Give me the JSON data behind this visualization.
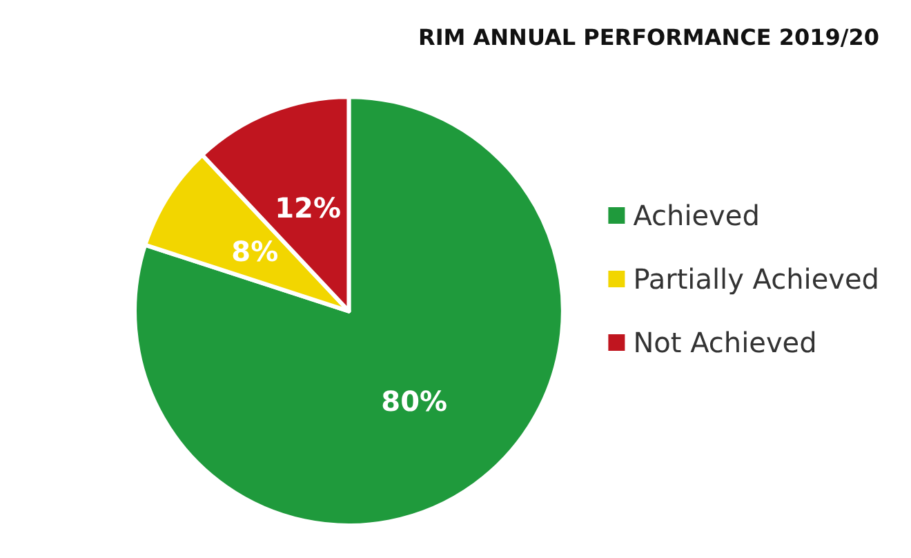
{
  "chart_data": {
    "type": "pie",
    "title": "RIM ANNUAL PERFORMANCE 2019/20",
    "categories": [
      "Achieved",
      "Partially Achieved",
      "Not Achieved"
    ],
    "values": [
      80,
      8,
      12
    ],
    "colors": [
      "#1f9a3c",
      "#f2d600",
      "#c0151f"
    ],
    "value_labels": [
      "80%",
      "8%",
      "12%"
    ],
    "legend": "right"
  }
}
